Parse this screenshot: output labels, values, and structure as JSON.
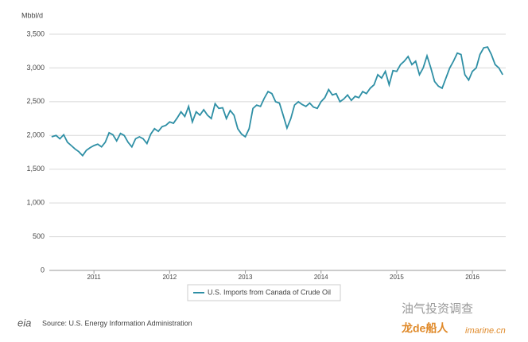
{
  "chart_data": {
    "type": "line",
    "y_axis_label": "Mbbl/d",
    "x": [
      2010.44,
      2010.5,
      2010.55,
      2010.6,
      2010.65,
      2010.7,
      2010.75,
      2010.8,
      2010.85,
      2010.9,
      2010.95,
      2011.0,
      2011.05,
      2011.1,
      2011.15,
      2011.2,
      2011.25,
      2011.3,
      2011.35,
      2011.4,
      2011.45,
      2011.5,
      2011.55,
      2011.6,
      2011.65,
      2011.7,
      2011.75,
      2011.8,
      2011.85,
      2011.9,
      2011.95,
      2012.0,
      2012.05,
      2012.1,
      2012.15,
      2012.2,
      2012.25,
      2012.3,
      2012.35,
      2012.4,
      2012.45,
      2012.5,
      2012.55,
      2012.6,
      2012.65,
      2012.7,
      2012.75,
      2012.8,
      2012.85,
      2012.9,
      2012.95,
      2013.0,
      2013.05,
      2013.1,
      2013.15,
      2013.2,
      2013.25,
      2013.3,
      2013.35,
      2013.4,
      2013.45,
      2013.5,
      2013.55,
      2013.6,
      2013.65,
      2013.7,
      2013.75,
      2013.8,
      2013.85,
      2013.9,
      2013.95,
      2014.0,
      2014.05,
      2014.1,
      2014.15,
      2014.2,
      2014.25,
      2014.3,
      2014.35,
      2014.4,
      2014.45,
      2014.5,
      2014.55,
      2014.6,
      2014.65,
      2014.7,
      2014.75,
      2014.8,
      2014.85,
      2014.9,
      2014.95,
      2015.0,
      2015.05,
      2015.1,
      2015.15,
      2015.2,
      2015.25,
      2015.3,
      2015.35,
      2015.4,
      2015.45,
      2015.5,
      2015.55,
      2015.6,
      2015.65,
      2015.7,
      2015.75,
      2015.8,
      2015.85,
      2015.9,
      2015.95,
      2016.0,
      2016.05,
      2016.1,
      2016.15,
      2016.2,
      2016.25,
      2016.3,
      2016.35,
      2016.4
    ],
    "series": [
      {
        "name": "U.S. Imports from Canada of Crude Oil",
        "color": "#2e8fa5",
        "values": [
          1980,
          2000,
          1950,
          2010,
          1900,
          1850,
          1800,
          1760,
          1700,
          1780,
          1820,
          1850,
          1870,
          1830,
          1900,
          2040,
          2010,
          1920,
          2030,
          2000,
          1900,
          1830,
          1950,
          1980,
          1950,
          1880,
          2020,
          2100,
          2060,
          2130,
          2150,
          2200,
          2180,
          2260,
          2350,
          2280,
          2430,
          2200,
          2350,
          2300,
          2380,
          2300,
          2250,
          2470,
          2400,
          2410,
          2250,
          2370,
          2300,
          2100,
          2020,
          1980,
          2100,
          2400,
          2450,
          2430,
          2550,
          2650,
          2620,
          2500,
          2480,
          2300,
          2110,
          2250,
          2450,
          2500,
          2460,
          2430,
          2480,
          2420,
          2400,
          2500,
          2560,
          2680,
          2600,
          2620,
          2500,
          2540,
          2600,
          2520,
          2580,
          2560,
          2650,
          2620,
          2700,
          2750,
          2900,
          2850,
          2950,
          2750,
          2960,
          2950,
          3050,
          3100,
          3170,
          3050,
          3100,
          2900,
          3000,
          3180,
          3000,
          2800,
          2730,
          2700,
          2850,
          3000,
          3100,
          3220,
          3200,
          2900,
          2820,
          2950,
          3000,
          3200,
          3300,
          3310,
          3200,
          3050,
          3000,
          2900
        ]
      }
    ],
    "xlim": [
      2010.41,
      2016.44
    ],
    "xticks": [
      2011,
      2012,
      2013,
      2014,
      2015,
      2016
    ],
    "ylim": [
      0,
      3500
    ],
    "yticks": [
      0,
      500,
      {
        "value": 1000,
        "label": "1,000"
      },
      {
        "value": 1500,
        "label": "1,500"
      },
      {
        "value": 2000,
        "label": "2,000"
      },
      {
        "value": 2500,
        "label": "2,500"
      },
      {
        "value": 3000,
        "label": "3,000"
      },
      {
        "value": 3500,
        "label": "3,500"
      }
    ],
    "grid": true,
    "source": "Source: U.S. Energy Information Administration",
    "logo": "eia",
    "watermark": [
      "油气投资调查",
      "龙de船人",
      "imarine.cn"
    ]
  }
}
